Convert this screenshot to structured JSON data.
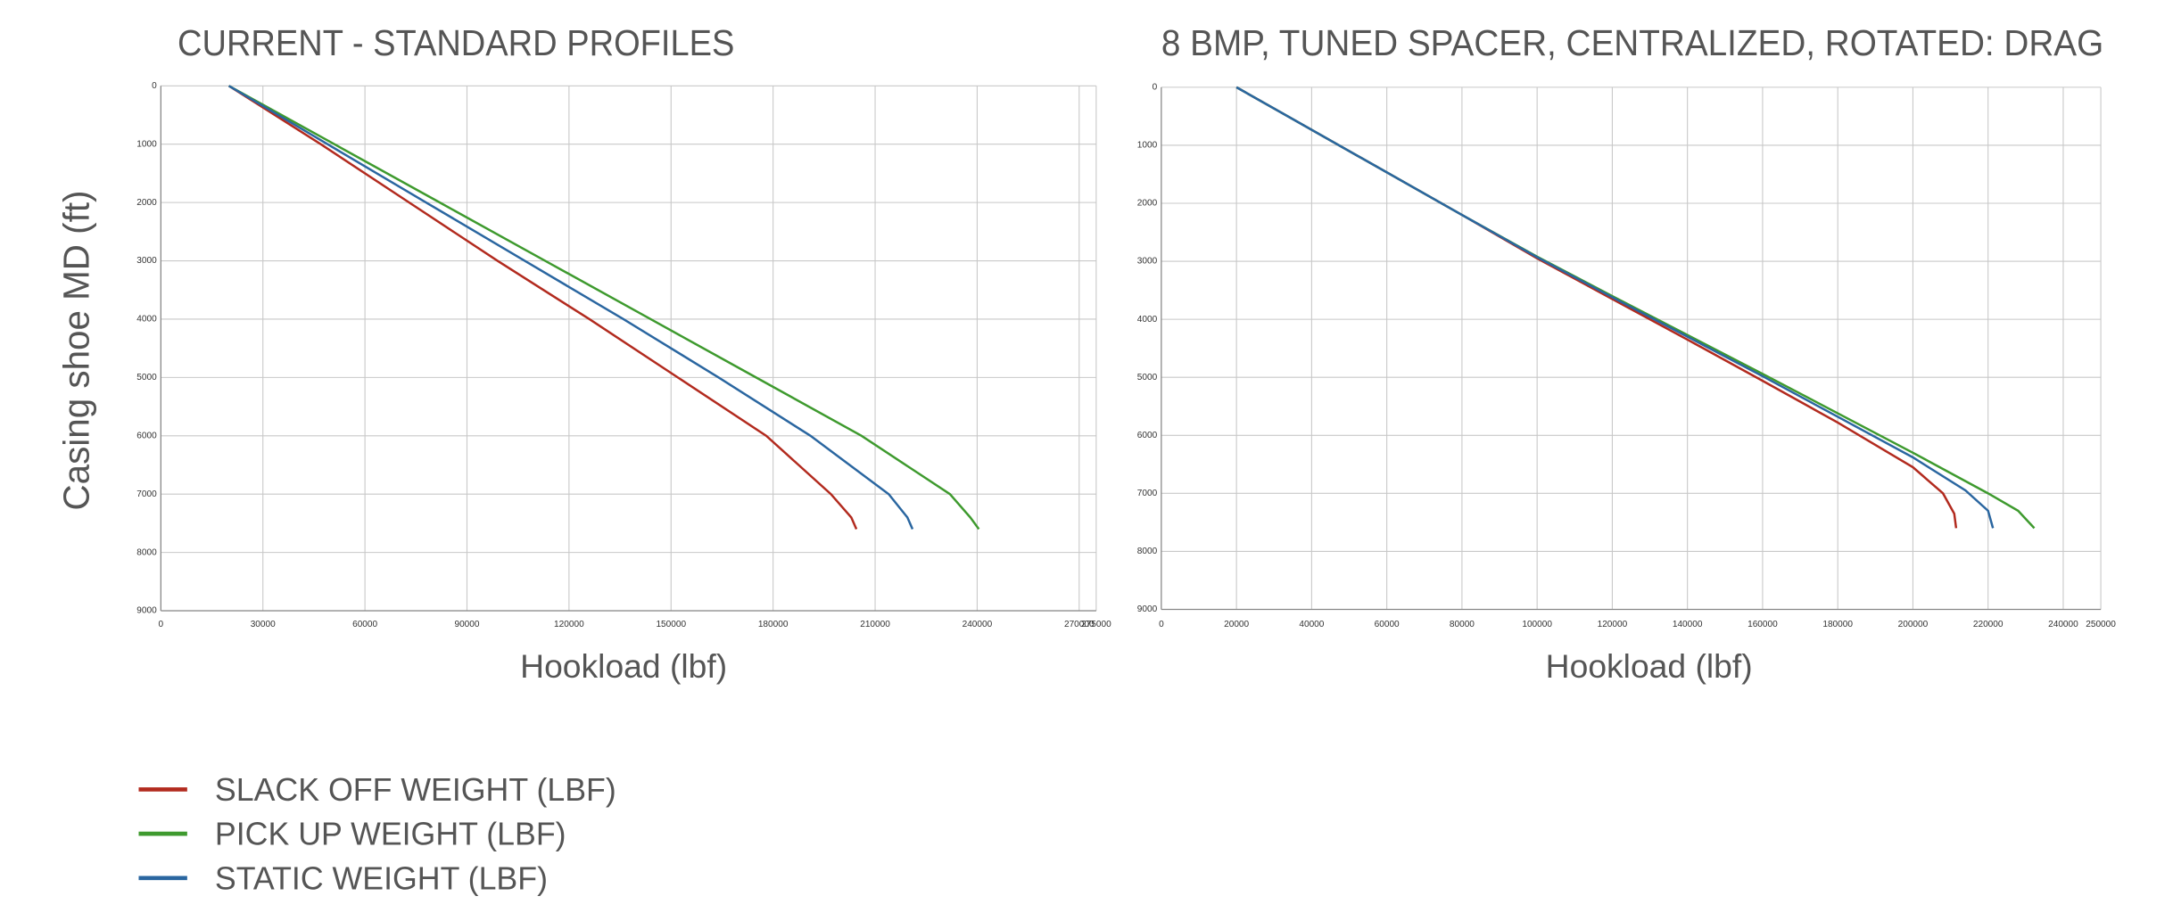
{
  "chart_data": [
    {
      "type": "line",
      "title": "CURRENT - STANDARD PROFILES",
      "x_label": "Hookload (lbf)",
      "y_label": "Casing shoe MD (ft)",
      "xlim": [
        0,
        275000
      ],
      "xticks": [
        0,
        30000,
        60000,
        90000,
        120000,
        150000,
        180000,
        210000,
        240000,
        270000,
        275000
      ],
      "ylim": [
        0,
        9000
      ],
      "yticks": [
        0,
        1000,
        2000,
        3000,
        4000,
        5000,
        6000,
        7000,
        8000,
        9000
      ],
      "y_inverted": true,
      "grid": true,
      "series": [
        {
          "name": "SLACK OFF WEIGHT (LBF)",
          "color": "#b22a1e",
          "x": [
            20000,
            47000,
            73000,
            99000,
            126000,
            152000,
            178000,
            197000,
            203000,
            204500
          ],
          "values": [
            0,
            1000,
            2000,
            3000,
            4000,
            5000,
            6000,
            7000,
            7400,
            7600
          ]
        },
        {
          "name": "PICK UP WEIGHT (LBF)",
          "color": "#3e9a2e",
          "x": [
            20000,
            51000,
            82000,
            113000,
            144000,
            175000,
            206000,
            232000,
            238000,
            240500
          ],
          "values": [
            0,
            1000,
            2000,
            3000,
            4000,
            5000,
            6000,
            7000,
            7400,
            7600
          ]
        },
        {
          "name": "STATIC WEIGHT (LBF)",
          "color": "#2a66a0",
          "x": [
            20000,
            49000,
            78000,
            107000,
            136000,
            164000,
            191000,
            214000,
            219500,
            221000
          ],
          "values": [
            0,
            1000,
            2000,
            3000,
            4000,
            5000,
            6000,
            7000,
            7400,
            7600
          ]
        }
      ]
    },
    {
      "type": "line",
      "title": "8 BMP, TUNED SPACER, CENTRALIZED, ROTATED: DRAG",
      "x_label": "Hookload (lbf)",
      "xlim": [
        0,
        250000
      ],
      "xticks": [
        0,
        20000,
        40000,
        60000,
        80000,
        100000,
        120000,
        140000,
        160000,
        180000,
        200000,
        220000,
        240000,
        250000
      ],
      "ylim": [
        0,
        9000
      ],
      "yticks": [
        0,
        1000,
        2000,
        3000,
        4000,
        5000,
        6000,
        7000,
        8000,
        9000
      ],
      "y_inverted": true,
      "grid": true,
      "series": [
        {
          "color": "#b22a1e",
          "x": [
            20000,
            80000,
            100000,
            120000,
            140000,
            160000,
            180000,
            200000,
            208000,
            211000,
            211500
          ],
          "values": [
            0,
            2200,
            2950,
            3650,
            4350,
            5060,
            5780,
            6550,
            7000,
            7350,
            7600
          ]
        },
        {
          "color": "#3e9a2e",
          "x": [
            20000,
            80000,
            100000,
            120000,
            140000,
            160000,
            180000,
            200000,
            220000,
            228000,
            232300
          ],
          "values": [
            0,
            2200,
            2920,
            3600,
            4270,
            4940,
            5620,
            6300,
            7000,
            7300,
            7600
          ]
        },
        {
          "color": "#2a66a0",
          "x": [
            20000,
            80000,
            100000,
            120000,
            140000,
            160000,
            180000,
            200000,
            214000,
            220000,
            221300
          ],
          "values": [
            0,
            2200,
            2930,
            3620,
            4300,
            4980,
            5680,
            6380,
            6950,
            7300,
            7600
          ]
        }
      ]
    }
  ]
}
